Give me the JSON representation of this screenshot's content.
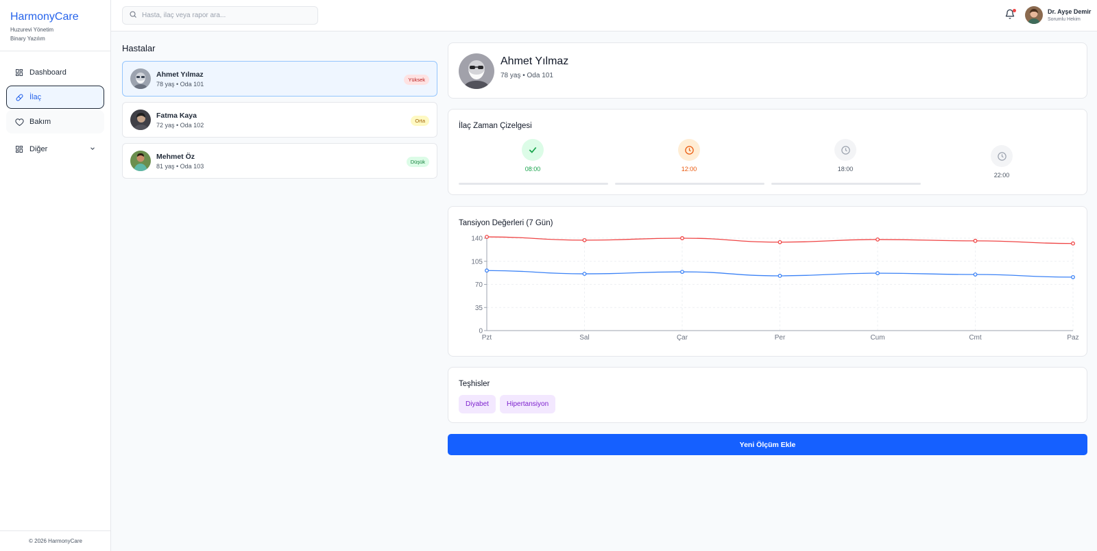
{
  "brand": {
    "title": "HarmonyCare",
    "subtitle1": "Huzurevi Yönetim",
    "subtitle2": "Binary Yazılım"
  },
  "sidebar": {
    "items": [
      {
        "label": "Dashboard",
        "icon": "grid-icon"
      },
      {
        "label": "İlaç",
        "icon": "pill-icon"
      },
      {
        "label": "Bakım",
        "icon": "heart-icon"
      },
      {
        "label": "Diğer",
        "icon": "grid-icon"
      }
    ],
    "footer": "© 2026 HarmonyCare"
  },
  "header": {
    "search_placeholder": "Hasta, ilaç veya rapor ara...",
    "user_name": "Dr. Ayşe Demir",
    "user_role": "Sorumlu Hekim",
    "has_notification": true
  },
  "patients": {
    "title": "Hastalar",
    "list": [
      {
        "name": "Ahmet Yılmaz",
        "meta": "78 yaş • Oda 101",
        "priority": "Yüksek",
        "badge_bg": "#fee2e2",
        "badge_fg": "#b91c1c"
      },
      {
        "name": "Fatma Kaya",
        "meta": "72 yaş • Oda 102",
        "priority": "Orta",
        "badge_bg": "#fef9c3",
        "badge_fg": "#a16207"
      },
      {
        "name": "Mehmet Öz",
        "meta": "81 yaş • Oda 103",
        "priority": "Düşük",
        "badge_bg": "#dcfce7",
        "badge_fg": "#15803d"
      }
    ]
  },
  "profile": {
    "name": "Ahmet Yılmaz",
    "meta": "78 yaş • Oda 101"
  },
  "schedule": {
    "title": "İlaç Zaman Çizelgesi",
    "steps": [
      {
        "time": "08:00",
        "status": "done",
        "color": "#16a34a",
        "bg": "#dcfce7"
      },
      {
        "time": "12:00",
        "status": "current",
        "color": "#ea580c",
        "bg": "#ffedd5"
      },
      {
        "time": "18:00",
        "status": "pending",
        "color": "#9ca3af",
        "bg": "#f3f4f6"
      },
      {
        "time": "22:00",
        "status": "pending",
        "color": "#9ca3af",
        "bg": "#f3f4f6"
      }
    ]
  },
  "chart_data": {
    "type": "line",
    "title": "Tansiyon Değerleri (7 Gün)",
    "categories": [
      "Pzt",
      "Sal",
      "Çar",
      "Per",
      "Cum",
      "Cmt",
      "Paz"
    ],
    "series": [
      {
        "color": "#ef4444",
        "values": [
          142,
          137,
          140,
          134,
          138,
          136,
          132
        ]
      },
      {
        "color": "#3b82f6",
        "values": [
          91,
          86,
          89,
          83,
          87,
          85,
          81
        ]
      }
    ],
    "ylim": [
      0,
      140
    ],
    "yticks": [
      0,
      35,
      70,
      105,
      140
    ],
    "grid": true
  },
  "diagnoses": {
    "title": "Teşhisler",
    "items": [
      "Diyabet",
      "Hipertansiyon"
    ]
  },
  "cta": {
    "label": "Yeni Ölçüm Ekle"
  },
  "colors": {
    "accent": "#2563eb",
    "cta": "#1560ff"
  }
}
